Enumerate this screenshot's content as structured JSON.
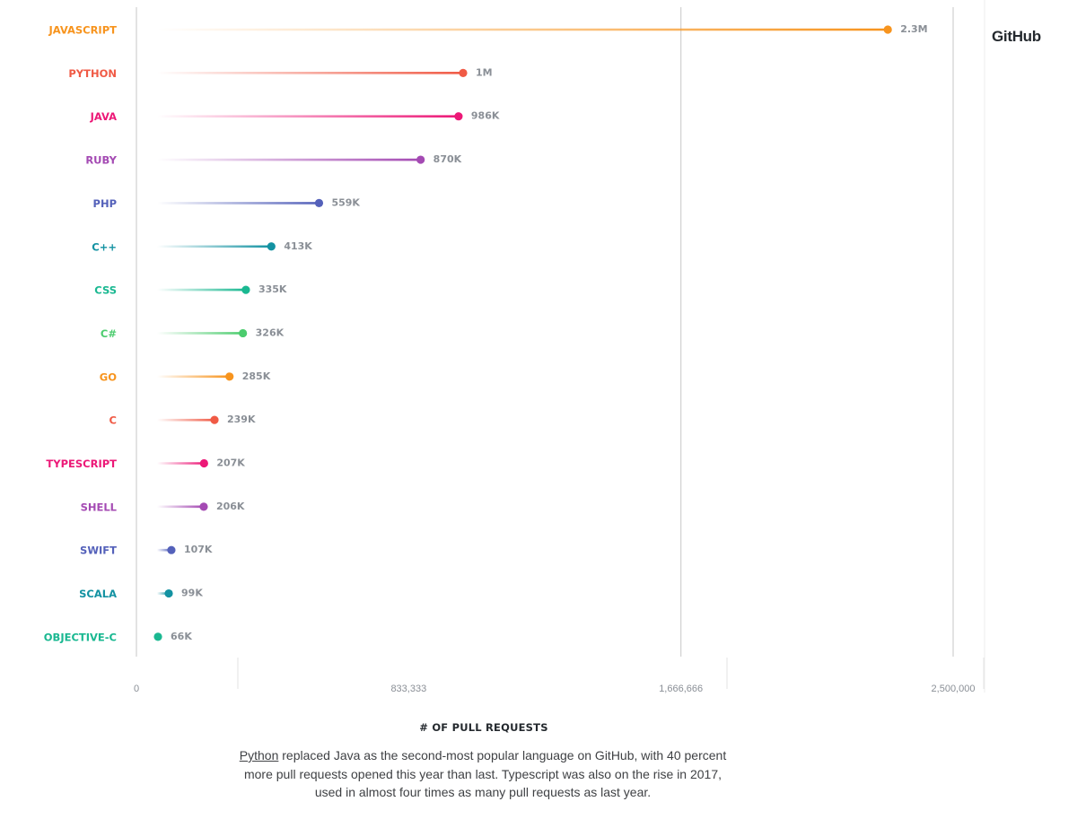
{
  "brand": "GitHub",
  "chart_data": {
    "type": "bar",
    "orientation": "horizontal",
    "style": "lollipop",
    "categories": [
      "JAVASCRIPT",
      "PYTHON",
      "JAVA",
      "RUBY",
      "PHP",
      "C++",
      "CSS",
      "C#",
      "GO",
      "C",
      "TYPESCRIPT",
      "SHELL",
      "SWIFT",
      "SCALA",
      "OBJECTIVE-C"
    ],
    "values": [
      2300000,
      1000000,
      986000,
      870000,
      559000,
      413000,
      335000,
      326000,
      285000,
      239000,
      207000,
      206000,
      107000,
      99000,
      66000
    ],
    "value_labels": [
      "2.3M",
      "1M",
      "986K",
      "870K",
      "559K",
      "413K",
      "335K",
      "326K",
      "285K",
      "239K",
      "207K",
      "206K",
      "107K",
      "99K",
      "66K"
    ],
    "colors": [
      "#f7941e",
      "#f05a45",
      "#ec1877",
      "#a44ab3",
      "#5461ba",
      "#1392a2",
      "#1ab891",
      "#4ccc6e",
      "#f7941e",
      "#f05a45",
      "#ec1877",
      "#a44ab3",
      "#5461ba",
      "#1392a2",
      "#1ab891"
    ],
    "xlabel": "# OF PULL REQUESTS",
    "xticks": [
      0,
      833333,
      1666666,
      2500000
    ],
    "xtick_labels": [
      "0",
      "833,333",
      "1,666,666",
      "2,500,000"
    ],
    "xlim": [
      0,
      2500000
    ],
    "grid": true
  },
  "caption": {
    "link": "Python",
    "text": " replaced Java as the second-most popular language on GitHub, with 40 percent more pull requests opened this year than last. Typescript was also on the rise in 2017, used in almost four times as many pull requests as last year."
  }
}
